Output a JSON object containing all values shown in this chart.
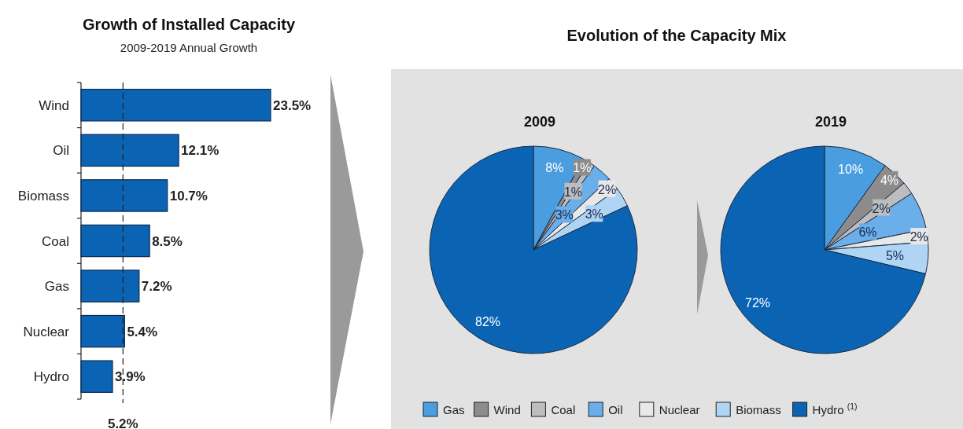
{
  "chart_data": [
    {
      "type": "bar",
      "orientation": "horizontal",
      "title": "Growth of Installed Capacity",
      "subtitle": "2009-2019 Annual Growth",
      "categories": [
        "Wind",
        "Oil",
        "Biomass",
        "Coal",
        "Gas",
        "Nuclear",
        "Hydro"
      ],
      "values": [
        23.5,
        12.1,
        10.7,
        8.5,
        7.2,
        5.4,
        3.9
      ],
      "value_labels": [
        "23.5%",
        "12.1%",
        "10.7%",
        "8.5%",
        "7.2%",
        "5.4%",
        "3.9%"
      ],
      "color": "#0b63b4",
      "ref_lines": [
        {
          "axis": "x",
          "value": 5.2,
          "label": "5.2%",
          "line_style": "dashed",
          "color": "#222222"
        }
      ]
    },
    {
      "type": "pie",
      "title": "2009",
      "annotations": [
        "Evolution of the Capacity Mix"
      ],
      "categories": [
        "Gas",
        "Wind",
        "Coal",
        "Oil",
        "Nuclear",
        "Biomass",
        "Hydro $^{(1)}$"
      ],
      "values": [
        8,
        1,
        1,
        3,
        2,
        3,
        82
      ],
      "value_labels": [
        "8%",
        "1%",
        "1%",
        "3%",
        "2%",
        "3%",
        "82%"
      ],
      "colors": [
        "#4a9ee0",
        "#8c8c8c",
        "#bdbdbd",
        "#6aaeea",
        "#e8e8e8",
        "#b0d4f4",
        "#0b63b4"
      ],
      "legend": "bottom"
    },
    {
      "type": "pie",
      "title": "2019",
      "categories": [
        null,
        null,
        null,
        null,
        null,
        null,
        null
      ],
      "values": [
        10,
        4,
        2,
        6,
        2,
        5,
        72
      ],
      "value_labels": [
        "10%",
        "4%",
        "2%",
        "6%",
        "2%",
        "5%",
        "72%"
      ],
      "colors": [
        "#4a9ee0",
        "#8c8c8c",
        "#bdbdbd",
        "#6aaeea",
        "#e8e8e8",
        "#b0d4f4",
        "#0b63b4"
      ]
    }
  ]
}
